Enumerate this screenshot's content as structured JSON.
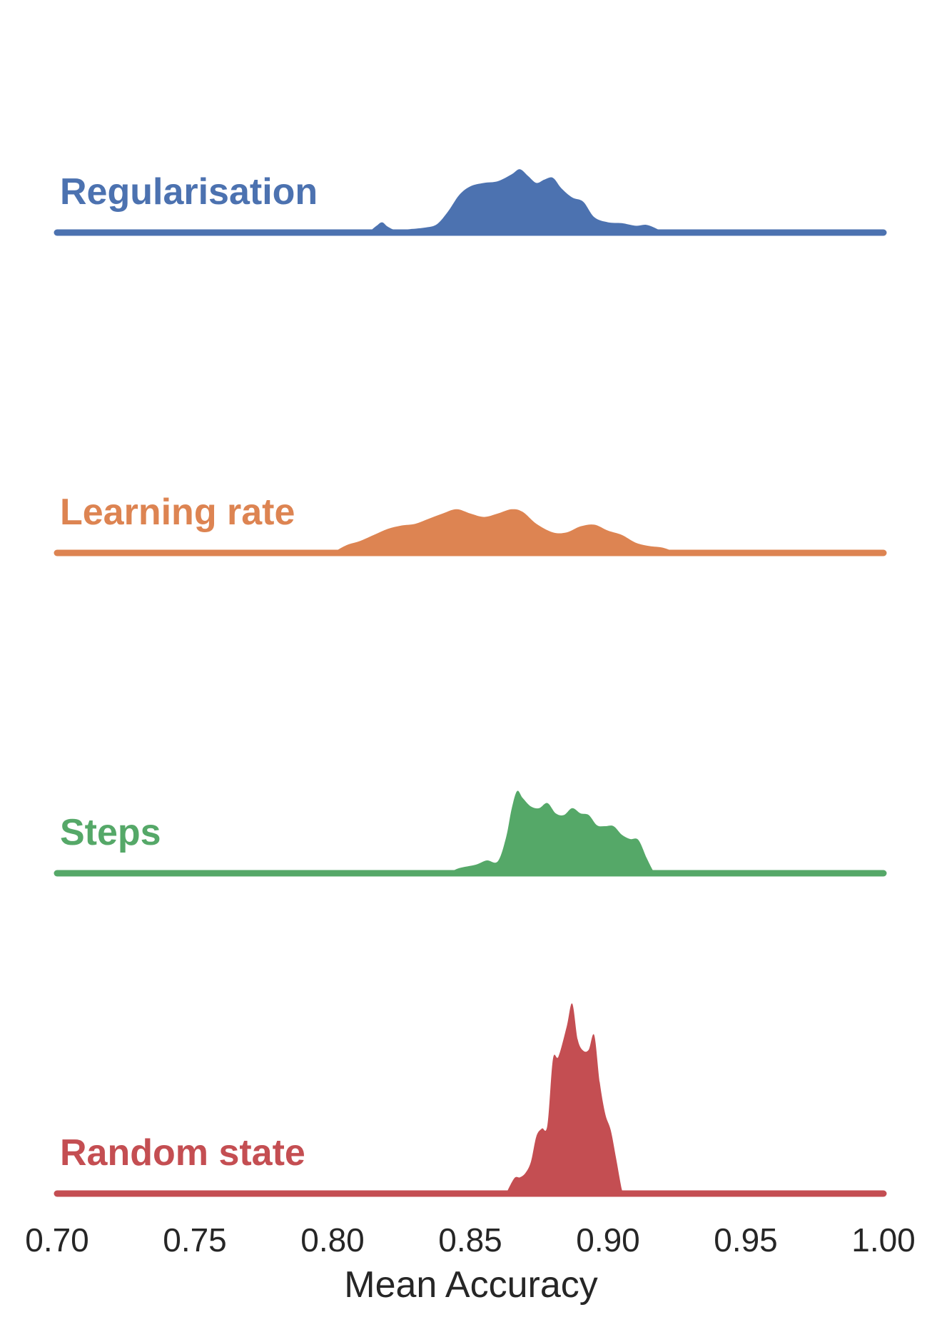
{
  "chart_data": {
    "type": "area",
    "subtype": "ridgeline-density",
    "title": "",
    "xlabel": "Mean Accuracy",
    "ylabel": "",
    "xlim": [
      0.7,
      1.0
    ],
    "xticks": [
      "0.70",
      "0.75",
      "0.80",
      "0.85",
      "0.90",
      "0.95",
      "1.00"
    ],
    "grid": false,
    "legend": "none",
    "series": [
      {
        "name": "Regularisation",
        "color": "#4C72B0",
        "points": [
          [
            0.813,
            0.0
          ],
          [
            0.816,
            0.08
          ],
          [
            0.818,
            0.12
          ],
          [
            0.82,
            0.07
          ],
          [
            0.823,
            0.03
          ],
          [
            0.828,
            0.04
          ],
          [
            0.834,
            0.06
          ],
          [
            0.838,
            0.1
          ],
          [
            0.842,
            0.25
          ],
          [
            0.846,
            0.44
          ],
          [
            0.85,
            0.54
          ],
          [
            0.855,
            0.58
          ],
          [
            0.86,
            0.6
          ],
          [
            0.865,
            0.68
          ],
          [
            0.868,
            0.74
          ],
          [
            0.871,
            0.66
          ],
          [
            0.874,
            0.58
          ],
          [
            0.877,
            0.62
          ],
          [
            0.88,
            0.64
          ],
          [
            0.883,
            0.52
          ],
          [
            0.887,
            0.41
          ],
          [
            0.891,
            0.36
          ],
          [
            0.895,
            0.18
          ],
          [
            0.9,
            0.12
          ],
          [
            0.905,
            0.11
          ],
          [
            0.91,
            0.08
          ],
          [
            0.914,
            0.09
          ],
          [
            0.918,
            0.04
          ],
          [
            0.92,
            0.0
          ]
        ]
      },
      {
        "name": "Learning rate",
        "color": "#DD8452",
        "points": [
          [
            0.8,
            0.0
          ],
          [
            0.805,
            0.09
          ],
          [
            0.81,
            0.14
          ],
          [
            0.815,
            0.21
          ],
          [
            0.82,
            0.28
          ],
          [
            0.825,
            0.32
          ],
          [
            0.83,
            0.34
          ],
          [
            0.835,
            0.4
          ],
          [
            0.84,
            0.46
          ],
          [
            0.845,
            0.51
          ],
          [
            0.85,
            0.46
          ],
          [
            0.855,
            0.42
          ],
          [
            0.86,
            0.46
          ],
          [
            0.865,
            0.51
          ],
          [
            0.869,
            0.48
          ],
          [
            0.874,
            0.34
          ],
          [
            0.88,
            0.24
          ],
          [
            0.885,
            0.24
          ],
          [
            0.89,
            0.31
          ],
          [
            0.895,
            0.33
          ],
          [
            0.9,
            0.26
          ],
          [
            0.905,
            0.21
          ],
          [
            0.91,
            0.12
          ],
          [
            0.915,
            0.08
          ],
          [
            0.92,
            0.06
          ],
          [
            0.925,
            0.0
          ]
        ]
      },
      {
        "name": "Steps",
        "color": "#55A868",
        "points": [
          [
            0.842,
            0.0
          ],
          [
            0.846,
            0.06
          ],
          [
            0.852,
            0.1
          ],
          [
            0.856,
            0.15
          ],
          [
            0.86,
            0.14
          ],
          [
            0.863,
            0.42
          ],
          [
            0.865,
            0.75
          ],
          [
            0.867,
            0.96
          ],
          [
            0.869,
            0.88
          ],
          [
            0.872,
            0.78
          ],
          [
            0.875,
            0.76
          ],
          [
            0.878,
            0.82
          ],
          [
            0.881,
            0.7
          ],
          [
            0.884,
            0.68
          ],
          [
            0.887,
            0.76
          ],
          [
            0.89,
            0.7
          ],
          [
            0.893,
            0.68
          ],
          [
            0.896,
            0.56
          ],
          [
            0.899,
            0.55
          ],
          [
            0.902,
            0.55
          ],
          [
            0.905,
            0.45
          ],
          [
            0.908,
            0.4
          ],
          [
            0.911,
            0.39
          ],
          [
            0.914,
            0.18
          ],
          [
            0.916,
            0.05
          ],
          [
            0.917,
            0.0
          ]
        ]
      },
      {
        "name": "Random state",
        "color": "#C44E52",
        "points": [
          [
            0.863,
            0.0
          ],
          [
            0.866,
            0.18
          ],
          [
            0.868,
            0.19
          ],
          [
            0.87,
            0.24
          ],
          [
            0.872,
            0.37
          ],
          [
            0.874,
            0.67
          ],
          [
            0.876,
            0.76
          ],
          [
            0.878,
            0.8
          ],
          [
            0.88,
            1.57
          ],
          [
            0.882,
            1.6
          ],
          [
            0.885,
            1.95
          ],
          [
            0.887,
            2.22
          ],
          [
            0.889,
            1.8
          ],
          [
            0.891,
            1.67
          ],
          [
            0.893,
            1.68
          ],
          [
            0.895,
            1.85
          ],
          [
            0.897,
            1.3
          ],
          [
            0.899,
            0.93
          ],
          [
            0.901,
            0.74
          ],
          [
            0.903,
            0.4
          ],
          [
            0.905,
            0.05
          ],
          [
            0.906,
            0.0
          ]
        ]
      }
    ]
  }
}
